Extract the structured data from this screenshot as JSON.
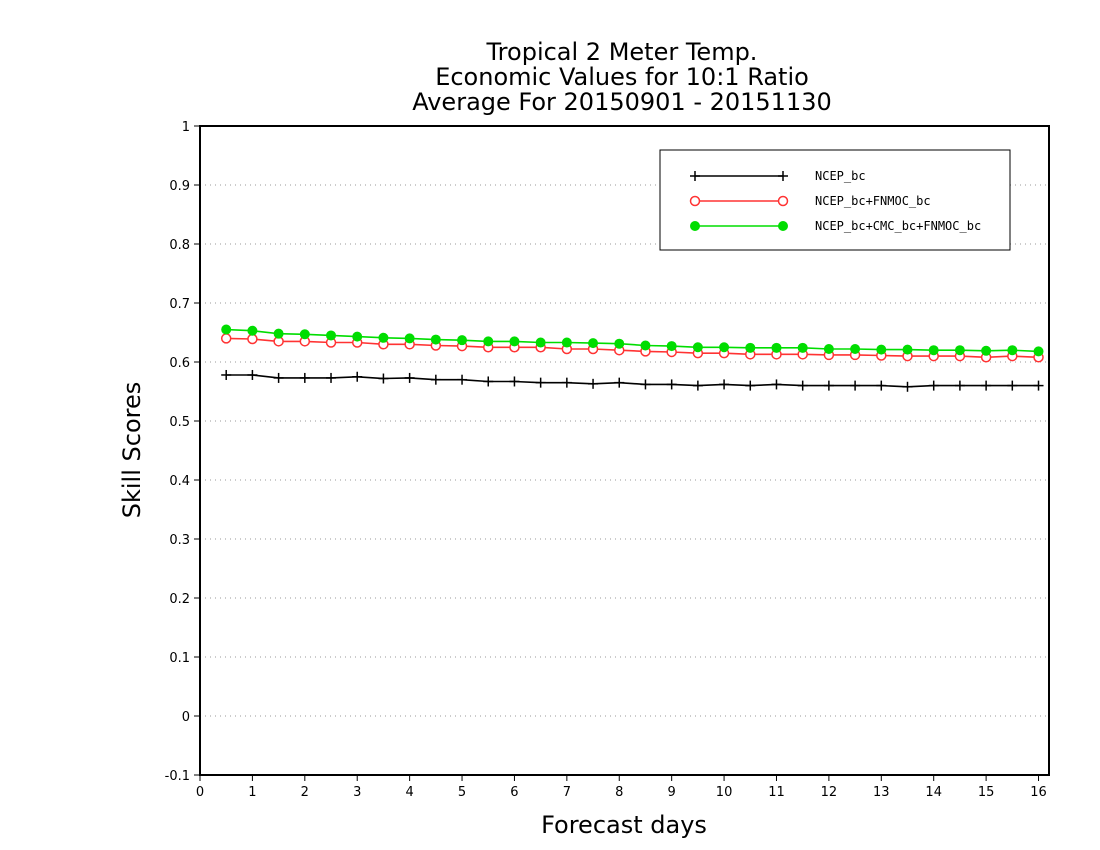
{
  "chart_data": {
    "type": "line",
    "title_lines": [
      "Tropical 2 Meter Temp.",
      "Economic Values for 10:1 Ratio",
      "Average For 20150901 - 20151130"
    ],
    "xlabel": "Forecast days",
    "ylabel": "Skill Scores",
    "xlim": [
      0,
      16.2
    ],
    "ylim": [
      -0.1,
      1
    ],
    "x_ticks": [
      "0",
      "1",
      "2",
      "3",
      "4",
      "5",
      "6",
      "7",
      "8",
      "9",
      "10",
      "11",
      "12",
      "13",
      "14",
      "15",
      "16"
    ],
    "y_ticks": [
      "-0.1",
      "0",
      "0.1",
      "0.2",
      "0.3",
      "0.4",
      "0.5",
      "0.6",
      "0.7",
      "0.8",
      "0.9",
      "1"
    ],
    "grid": "horizontal dotted",
    "legend_position": "top-right",
    "x": [
      0.5,
      1.0,
      1.5,
      2.0,
      2.5,
      3.0,
      3.5,
      4.0,
      4.5,
      5.0,
      5.5,
      6.0,
      6.5,
      7.0,
      7.5,
      8.0,
      8.5,
      9.0,
      9.5,
      10.0,
      10.5,
      11.0,
      11.5,
      12.0,
      12.5,
      13.0,
      13.5,
      14.0,
      14.5,
      15.0,
      15.5,
      16.0
    ],
    "series": [
      {
        "name": "NCEP_bc",
        "color": "#000000",
        "marker": "plus",
        "values": [
          0.578,
          0.578,
          0.573,
          0.573,
          0.573,
          0.575,
          0.572,
          0.573,
          0.57,
          0.57,
          0.567,
          0.567,
          0.565,
          0.565,
          0.563,
          0.565,
          0.562,
          0.562,
          0.56,
          0.562,
          0.56,
          0.562,
          0.56,
          0.56,
          0.56,
          0.56,
          0.558,
          0.56,
          0.56,
          0.56,
          0.56,
          0.56
        ]
      },
      {
        "name": "NCEP_bc+FNMOC_bc",
        "color": "#ff3333",
        "marker": "open-circle",
        "values": [
          0.64,
          0.639,
          0.635,
          0.635,
          0.633,
          0.633,
          0.63,
          0.63,
          0.628,
          0.627,
          0.625,
          0.625,
          0.625,
          0.622,
          0.622,
          0.62,
          0.618,
          0.617,
          0.615,
          0.615,
          0.613,
          0.613,
          0.613,
          0.612,
          0.612,
          0.611,
          0.61,
          0.61,
          0.61,
          0.608,
          0.61,
          0.608
        ]
      },
      {
        "name": "NCEP_bc+CMC_bc+FNMOC_bc",
        "color": "#00dd00",
        "marker": "filled-circle",
        "values": [
          0.655,
          0.653,
          0.648,
          0.647,
          0.645,
          0.643,
          0.641,
          0.64,
          0.638,
          0.637,
          0.635,
          0.635,
          0.633,
          0.633,
          0.632,
          0.631,
          0.628,
          0.627,
          0.625,
          0.625,
          0.624,
          0.624,
          0.624,
          0.622,
          0.622,
          0.621,
          0.621,
          0.62,
          0.62,
          0.619,
          0.62,
          0.618
        ]
      }
    ]
  }
}
